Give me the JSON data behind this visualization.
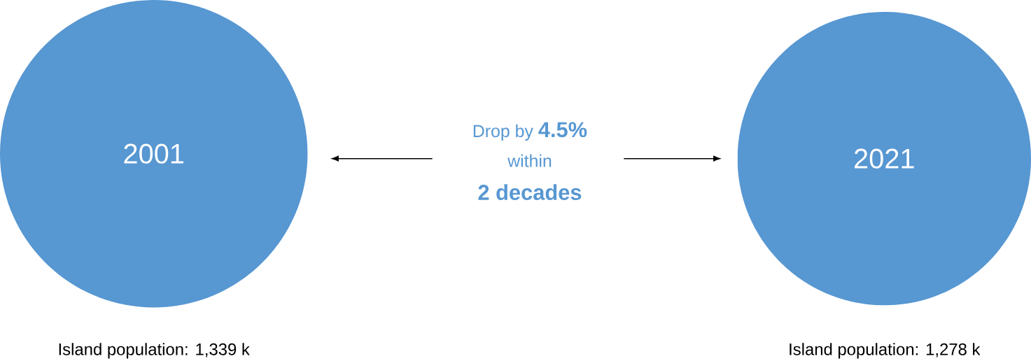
{
  "chart_data": {
    "type": "other",
    "categories": [
      "2001",
      "2021"
    ],
    "values": [
      1339,
      1278
    ],
    "value_labels": [
      "Island population: 1,339 k",
      "Island population: 1,278 k"
    ],
    "color": "#5797d2",
    "annotations": [
      "Drop by **4.5%**",
      "within",
      "2 decades"
    ]
  }
}
